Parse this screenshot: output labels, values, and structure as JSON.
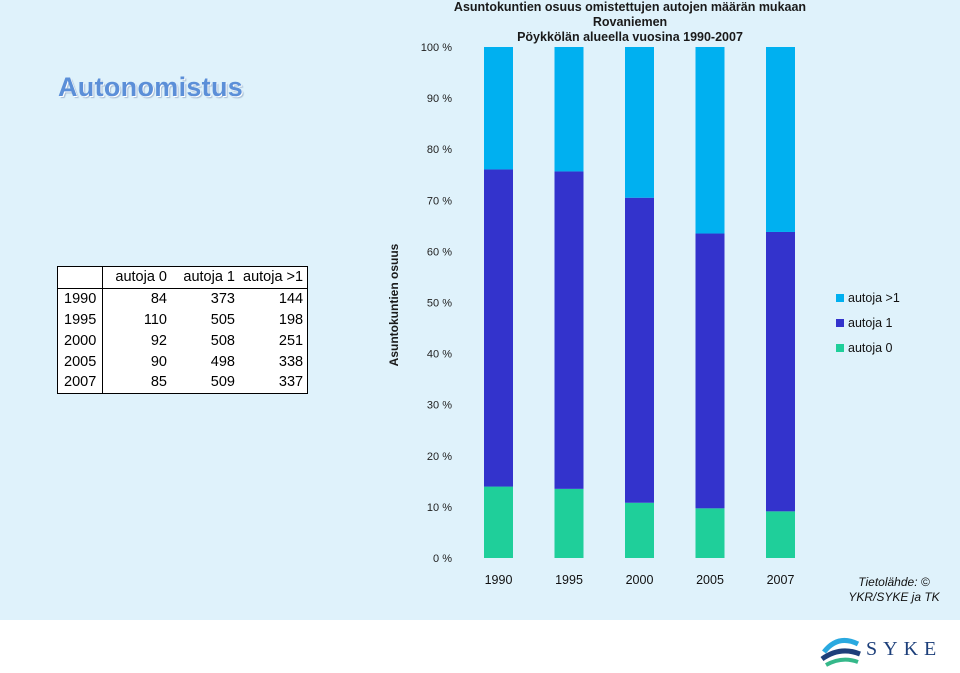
{
  "heading": "Autonomistus",
  "chart_title_line1": "Asuntokuntien osuus omistettujen autojen määrän mukaan Rovaniemen",
  "chart_title_line2": "Pöykkölän alueella vuosina 1990-2007",
  "source_line1": "Tietolähde: ©",
  "source_line2": "YKR/SYKE ja TK",
  "logo_text": "SYKE",
  "table": {
    "headers": [
      "",
      "autoja 0",
      "autoja 1",
      "autoja >1"
    ],
    "rows": [
      [
        "1990",
        "84",
        "373",
        "144"
      ],
      [
        "1995",
        "110",
        "505",
        "198"
      ],
      [
        "2000",
        "92",
        "508",
        "251"
      ],
      [
        "2005",
        "90",
        "498",
        "338"
      ],
      [
        "2007",
        "85",
        "509",
        "337"
      ]
    ]
  },
  "colors": {
    "autoja_0": "#1fcf9a",
    "autoja_1": "#3333cc",
    "autoja_gt1": "#00b0f0",
    "background": "#dff2fb"
  },
  "chart_data": {
    "type": "bar",
    "stacked": "percent",
    "title": "Asuntokuntien osuus omistettujen autojen määrän mukaan Rovaniemen Pöykkölän alueella vuosina 1990-2007",
    "ylabel": "Asuntokuntien osuus",
    "xlabel": "",
    "categories": [
      "1990",
      "1995",
      "2000",
      "2005",
      "2007"
    ],
    "yticks": [
      "0 %",
      "10 %",
      "20 %",
      "30 %",
      "40 %",
      "50 %",
      "60 %",
      "70 %",
      "80 %",
      "90 %",
      "100 %"
    ],
    "ylim": [
      0,
      100
    ],
    "legend_position": "right",
    "series": [
      {
        "name": "autoja 0",
        "values": [
          84,
          110,
          92,
          90,
          85
        ],
        "color": "#1fcf9a"
      },
      {
        "name": "autoja 1",
        "values": [
          373,
          505,
          508,
          498,
          509
        ],
        "color": "#3333cc"
      },
      {
        "name": "autoja >1",
        "values": [
          144,
          198,
          251,
          338,
          337
        ],
        "color": "#00b0f0"
      }
    ],
    "legend_order": [
      "autoja >1",
      "autoja 1",
      "autoja 0"
    ]
  }
}
